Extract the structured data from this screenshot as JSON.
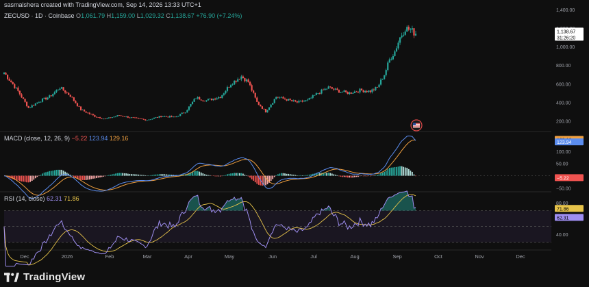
{
  "header": {
    "created_by": "sasmalshera created with TradingView.com, Sep 14, 2026 13:33 UTC+1"
  },
  "symbol": {
    "name": "ZECUSD · 1D · Coinbase",
    "o": "1,061.79",
    "h": "1,159.00",
    "l": "1,029.32",
    "c": "1,138.67",
    "change": "+76.90 (+7.24%)"
  },
  "price_badge": {
    "price": "1,138.67",
    "countdown": "31:26:20"
  },
  "macd_header": {
    "label": "MACD (close, 12, 26, 9)",
    "hist": "−5.22",
    "macd": "123.94",
    "signal": "129.16"
  },
  "rsi_header": {
    "label": "RSI (14, close)",
    "rsi": "62.31",
    "ma": "71.86"
  },
  "brand": {
    "name": "TradingView"
  },
  "colors": {
    "up": "#26a69a",
    "down": "#ef5350",
    "macd": "#5b8def",
    "signal": "#f0a040",
    "rsi": "#9e8ef0",
    "rsi_ma": "#e6c34a",
    "badge": "#ffffff"
  },
  "chart_data": {
    "type": "candlestick",
    "x_ticks": [
      "Dec",
      "2026",
      "Feb",
      "Mar",
      "Apr",
      "May",
      "Jun",
      "Jul",
      "Aug",
      "Sep",
      "Oct",
      "Nov",
      "Dec"
    ],
    "price_axis": {
      "ticks": [
        "1,400.00",
        "1,200.00",
        "1,000.00",
        "800.00",
        "600.00",
        "400.00",
        "200.00"
      ],
      "range": [
        100,
        1400
      ]
    },
    "price_keypoints": [
      [
        0,
        720
      ],
      [
        8,
        520
      ],
      [
        14,
        340
      ],
      [
        20,
        410
      ],
      [
        26,
        460
      ],
      [
        32,
        560
      ],
      [
        38,
        470
      ],
      [
        44,
        320
      ],
      [
        52,
        250
      ],
      [
        58,
        220
      ],
      [
        66,
        260
      ],
      [
        74,
        230
      ],
      [
        82,
        210
      ],
      [
        90,
        250
      ],
      [
        98,
        240
      ],
      [
        104,
        300
      ],
      [
        110,
        450
      ],
      [
        116,
        420
      ],
      [
        124,
        460
      ],
      [
        130,
        600
      ],
      [
        136,
        680
      ],
      [
        140,
        620
      ],
      [
        145,
        400
      ],
      [
        150,
        300
      ],
      [
        156,
        460
      ],
      [
        162,
        430
      ],
      [
        168,
        400
      ],
      [
        174,
        420
      ],
      [
        180,
        500
      ],
      [
        186,
        560
      ],
      [
        192,
        520
      ],
      [
        198,
        500
      ],
      [
        204,
        530
      ],
      [
        210,
        520
      ],
      [
        214,
        560
      ],
      [
        218,
        700
      ],
      [
        221,
        860
      ],
      [
        224,
        950
      ],
      [
        227,
        1100
      ],
      [
        230,
        1200
      ],
      [
        233,
        1180
      ],
      [
        236,
        1139
      ]
    ],
    "macd_axis": {
      "ticks": [
        "100.00",
        "50.00",
        "0.00",
        "−50.00"
      ],
      "range": [
        -60,
        175
      ]
    },
    "rsi_axis": {
      "ticks": [
        "80.00",
        "60.00",
        "40.00"
      ],
      "range": [
        22,
        92
      ],
      "upper_band": 70,
      "lower_band": 30
    }
  }
}
